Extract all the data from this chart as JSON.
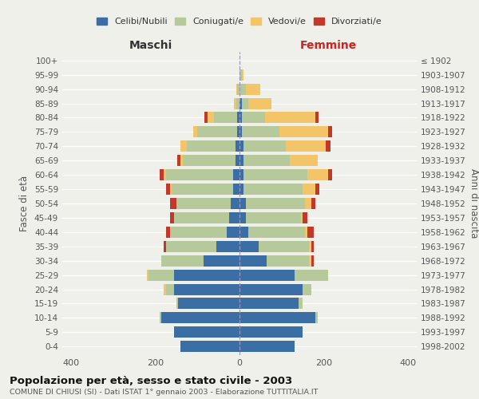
{
  "age_groups": [
    "0-4",
    "5-9",
    "10-14",
    "15-19",
    "20-24",
    "25-29",
    "30-34",
    "35-39",
    "40-44",
    "45-49",
    "50-54",
    "55-59",
    "60-64",
    "65-69",
    "70-74",
    "75-79",
    "80-84",
    "85-89",
    "90-94",
    "95-99",
    "100+"
  ],
  "birth_years": [
    "1998-2002",
    "1993-1997",
    "1988-1992",
    "1983-1987",
    "1978-1982",
    "1973-1977",
    "1968-1972",
    "1963-1967",
    "1958-1962",
    "1953-1957",
    "1948-1952",
    "1943-1947",
    "1938-1942",
    "1933-1937",
    "1928-1932",
    "1923-1927",
    "1918-1922",
    "1913-1917",
    "1908-1912",
    "1903-1907",
    "≤ 1902"
  ],
  "males": {
    "celibi": [
      140,
      155,
      185,
      145,
      155,
      155,
      85,
      55,
      30,
      25,
      20,
      15,
      15,
      10,
      10,
      5,
      5,
      0,
      0,
      0,
      0
    ],
    "coniugati": [
      0,
      0,
      5,
      5,
      20,
      60,
      100,
      120,
      135,
      130,
      130,
      145,
      160,
      125,
      115,
      95,
      55,
      8,
      5,
      0,
      0
    ],
    "vedovi": [
      0,
      0,
      0,
      0,
      5,
      5,
      0,
      0,
      0,
      0,
      0,
      5,
      5,
      5,
      15,
      10,
      15,
      5,
      3,
      0,
      0
    ],
    "divorziati": [
      0,
      0,
      0,
      0,
      0,
      0,
      0,
      5,
      10,
      10,
      15,
      10,
      10,
      8,
      0,
      0,
      8,
      0,
      0,
      0,
      0
    ]
  },
  "females": {
    "nubili": [
      130,
      150,
      180,
      140,
      150,
      130,
      65,
      45,
      20,
      15,
      15,
      10,
      10,
      10,
      10,
      5,
      5,
      5,
      0,
      0,
      0
    ],
    "coniugate": [
      0,
      0,
      5,
      10,
      20,
      80,
      100,
      120,
      135,
      130,
      140,
      140,
      150,
      110,
      100,
      90,
      55,
      15,
      15,
      5,
      0
    ],
    "vedove": [
      0,
      0,
      0,
      0,
      0,
      0,
      5,
      5,
      5,
      5,
      15,
      30,
      50,
      65,
      95,
      115,
      120,
      55,
      35,
      5,
      0
    ],
    "divorziate": [
      0,
      0,
      0,
      0,
      0,
      0,
      5,
      5,
      15,
      10,
      10,
      10,
      10,
      0,
      10,
      10,
      8,
      0,
      0,
      0,
      0
    ]
  },
  "colors": {
    "celibi": "#3a6ea5",
    "coniugati": "#b5c99a",
    "vedovi": "#f4c469",
    "divorziati": "#c0392b"
  },
  "xlim": 420,
  "title": "Popolazione per età, sesso e stato civile - 2003",
  "subtitle": "COMUNE DI CHIUSI (SI) - Dati ISTAT 1° gennaio 2003 - Elaborazione TUTTITALIA.IT",
  "ylabel_left": "Fasce di età",
  "ylabel_right": "Anni di nascita",
  "xlabel_left": "Maschi",
  "xlabel_right": "Femmine",
  "legend_labels": [
    "Celibi/Nubili",
    "Coniugati/e",
    "Vedovi/e",
    "Divorziati/e"
  ],
  "bg_color": "#f0f0eb",
  "plot_bg": "#f0f0eb",
  "maschi_color": "#333333",
  "femmine_color": "#cc2222"
}
